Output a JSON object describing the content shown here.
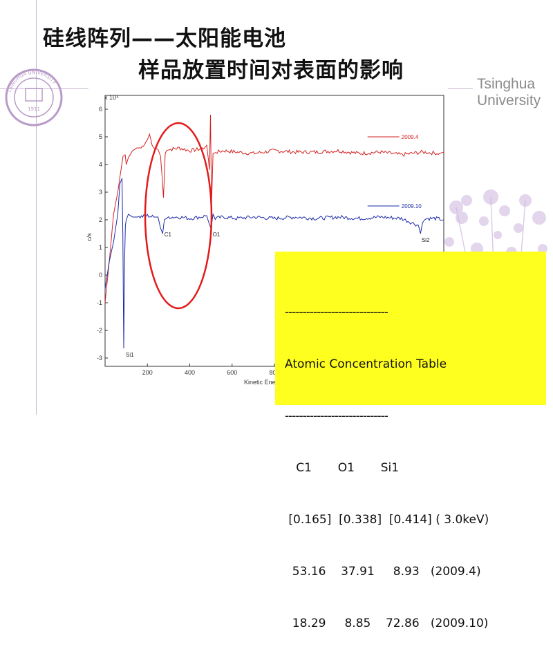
{
  "slide": {
    "title_line1": "硅线阵列——太阳能电池",
    "title_line2": "样品放置时间对表面的影响",
    "brand_line1": "Tsinghua",
    "brand_line2": "University",
    "seal_text": "TSINGHUA UNIVERSITY",
    "seal_year": "1911",
    "colors": {
      "title": "#111111",
      "brand": "#8b8b8b",
      "divider": "#c9b6d4",
      "highlight_box": "#ffff1f",
      "circle": "#e31a1a"
    }
  },
  "chart_data": {
    "type": "line",
    "title": "",
    "xlabel": "Kinetic Ene",
    "ylabel": "c/s",
    "y_multiplier": "x 10⁴",
    "xlim": [
      0,
      1600
    ],
    "ylim": [
      -3.3,
      6.5
    ],
    "x_ticks": [
      200,
      400,
      600,
      800
    ],
    "y_ticks": [
      -3,
      -2,
      -1,
      0,
      1,
      2,
      3,
      4,
      5,
      6
    ],
    "series": [
      {
        "name": "2009.4",
        "color": "#d42020",
        "x": [
          0,
          20,
          40,
          60,
          75,
          85,
          95,
          100,
          110,
          130,
          150,
          170,
          200,
          210,
          222,
          230,
          250,
          262,
          270,
          276,
          280,
          284,
          290,
          310,
          350,
          400,
          440,
          470,
          480,
          488,
          493,
          498,
          503,
          510,
          530,
          560,
          620,
          700,
          800,
          900,
          1000,
          1100,
          1200,
          1300,
          1400,
          1500,
          1580,
          1600
        ],
        "values": [
          -1.0,
          0.5,
          2.2,
          3.0,
          3.8,
          4.3,
          4.35,
          4.0,
          4.25,
          4.5,
          4.6,
          4.6,
          4.9,
          5.1,
          4.7,
          4.6,
          4.55,
          4.3,
          3.5,
          2.8,
          3.6,
          4.4,
          4.5,
          4.55,
          4.6,
          4.5,
          4.55,
          4.6,
          4.7,
          4.2,
          3.8,
          5.8,
          2.5,
          4.4,
          4.45,
          4.5,
          4.45,
          4.4,
          4.5,
          4.45,
          4.45,
          4.5,
          4.4,
          4.45,
          4.35,
          4.45,
          4.4,
          4.45
        ]
      },
      {
        "name": "2009.10",
        "color": "#1c2aa8",
        "x": [
          0,
          20,
          40,
          60,
          70,
          80,
          84,
          88,
          92,
          96,
          100,
          110,
          130,
          160,
          200,
          230,
          250,
          262,
          272,
          280,
          300,
          350,
          400,
          450,
          480,
          490,
          500,
          510,
          520,
          560,
          620,
          700,
          800,
          900,
          1000,
          1100,
          1200,
          1300,
          1400,
          1480,
          1490,
          1500,
          1510,
          1520,
          1560,
          1600
        ],
        "values": [
          -0.5,
          0.5,
          1.2,
          2.2,
          3.3,
          3.5,
          1.5,
          -2.65,
          0.5,
          1.8,
          2.0,
          2.2,
          2.1,
          2.1,
          2.15,
          2.1,
          2.1,
          1.7,
          1.5,
          2.0,
          2.1,
          2.1,
          2.05,
          2.1,
          2.15,
          1.9,
          1.7,
          2.2,
          2.05,
          2.1,
          2.05,
          2.1,
          2.05,
          2.1,
          2.05,
          2.1,
          2.05,
          2.1,
          2.05,
          1.8,
          1.5,
          1.9,
          2.0,
          2.05,
          2.05,
          2.0
        ]
      }
    ],
    "annotations": [
      {
        "text": "C1",
        "x": 280,
        "y": 1.4
      },
      {
        "text": "O1",
        "x": 508,
        "y": 1.4
      },
      {
        "text": "Si1",
        "x": 98,
        "y": -2.95
      },
      {
        "text": "Si2",
        "x": 1495,
        "y": 1.2
      }
    ],
    "legend_placement": "right, inline next to each curve",
    "grid": false
  },
  "concentration_table": {
    "dash_line": "-----------------------------",
    "title": "Atomic Concentration Table",
    "header": "   C1       O1       Si1",
    "rows": [
      " [0.165]  [0.338]  [0.414] ( 3.0keV)",
      "  53.16    37.91     8.93   (2009.4)",
      "  18.29     8.85    72.86   (2009.10)"
    ]
  }
}
